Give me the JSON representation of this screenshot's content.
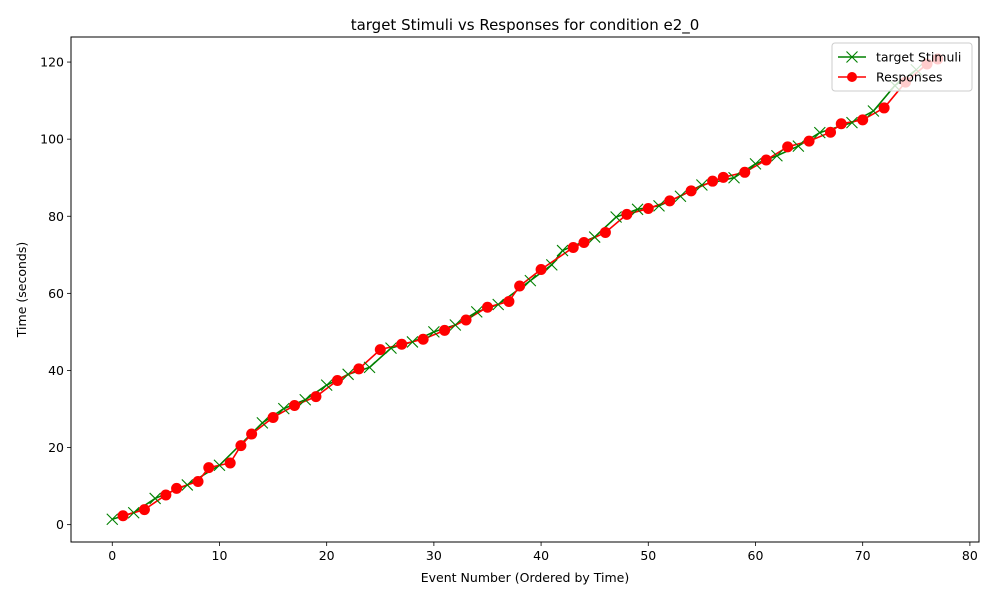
{
  "chart_data": {
    "type": "line",
    "title": "target Stimuli vs Responses for condition e2_0",
    "xlabel": "Event Number (Ordered by Time)",
    "ylabel": "Time (seconds)",
    "xlim": [
      -3.85,
      80.85
    ],
    "ylim": [
      -4.5,
      126.5
    ],
    "xticks": [
      0,
      10,
      20,
      30,
      40,
      50,
      60,
      70,
      80
    ],
    "yticks": [
      0,
      20,
      40,
      60,
      80,
      100,
      120
    ],
    "grid": false,
    "legend_position": "upper right",
    "series": [
      {
        "name": "target Stimuli",
        "color": "#008000",
        "marker": "x",
        "points": [
          [
            0,
            1.4
          ],
          [
            2,
            3.1
          ],
          [
            4,
            6.8
          ],
          [
            7,
            10.3
          ],
          [
            10,
            15.4
          ],
          [
            14,
            26.4
          ],
          [
            16,
            30.1
          ],
          [
            18,
            32.4
          ],
          [
            20,
            36.2
          ],
          [
            22,
            39.0
          ],
          [
            24,
            40.8
          ],
          [
            26,
            45.8
          ],
          [
            28,
            47.4
          ],
          [
            30,
            50.0
          ],
          [
            32,
            51.8
          ],
          [
            34,
            55.2
          ],
          [
            36,
            57.1
          ],
          [
            39,
            63.3
          ],
          [
            41,
            67.4
          ],
          [
            42,
            71.1
          ],
          [
            45,
            74.6
          ],
          [
            47,
            79.8
          ],
          [
            49,
            81.8
          ],
          [
            51,
            82.7
          ],
          [
            53,
            85.2
          ],
          [
            55,
            88.1
          ],
          [
            58,
            90.0
          ],
          [
            60,
            93.6
          ],
          [
            62,
            95.7
          ],
          [
            64,
            98.2
          ],
          [
            66,
            101.7
          ],
          [
            69,
            104.3
          ],
          [
            71,
            107.3
          ],
          [
            73,
            113.9
          ],
          [
            75,
            118.0
          ]
        ]
      },
      {
        "name": "Responses",
        "color": "#ff0000",
        "marker": "o",
        "points": [
          [
            1,
            2.3
          ],
          [
            3,
            3.9
          ],
          [
            5,
            7.7
          ],
          [
            6,
            9.4
          ],
          [
            8,
            11.2
          ],
          [
            9,
            14.8
          ],
          [
            11,
            16.0
          ],
          [
            12,
            20.5
          ],
          [
            13,
            23.5
          ],
          [
            15,
            27.8
          ],
          [
            17,
            30.9
          ],
          [
            19,
            33.2
          ],
          [
            21,
            37.4
          ],
          [
            23,
            40.4
          ],
          [
            25,
            45.4
          ],
          [
            27,
            46.8
          ],
          [
            29,
            48.1
          ],
          [
            31,
            50.4
          ],
          [
            33,
            53.1
          ],
          [
            35,
            56.4
          ],
          [
            37,
            57.9
          ],
          [
            38,
            61.9
          ],
          [
            40,
            66.2
          ],
          [
            43,
            71.9
          ],
          [
            44,
            73.2
          ],
          [
            46,
            75.8
          ],
          [
            48,
            80.5
          ],
          [
            50,
            82.0
          ],
          [
            52,
            84.0
          ],
          [
            54,
            86.6
          ],
          [
            56,
            89.1
          ],
          [
            57,
            90.1
          ],
          [
            59,
            91.4
          ],
          [
            61,
            94.6
          ],
          [
            63,
            98.0
          ],
          [
            65,
            99.5
          ],
          [
            67,
            101.8
          ],
          [
            68,
            104.0
          ],
          [
            70,
            105.0
          ],
          [
            72,
            108.1
          ],
          [
            74,
            114.8
          ],
          [
            76,
            119.5
          ],
          [
            77,
            120.8
          ]
        ]
      }
    ]
  }
}
